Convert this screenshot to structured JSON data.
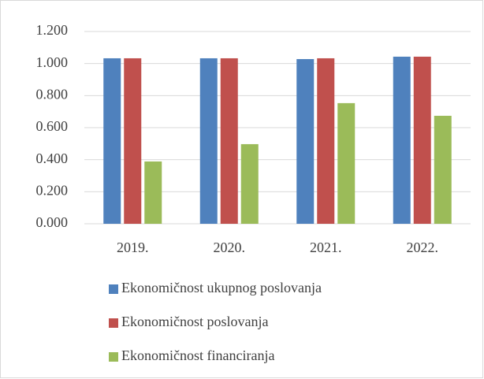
{
  "chart_data": {
    "type": "bar",
    "categories": [
      "2019.",
      "2020.",
      "2021.",
      "2022."
    ],
    "series": [
      {
        "name": "Ekonomičnost ukupnog poslovanja",
        "color": "#4f81bd",
        "values": [
          1.033,
          1.033,
          1.028,
          1.043
        ]
      },
      {
        "name": "Ekonomičnost poslovanja",
        "color": "#c0504d",
        "values": [
          1.033,
          1.033,
          1.033,
          1.043
        ]
      },
      {
        "name": "Ekonomičnost financiranja",
        "color": "#9bbb59",
        "values": [
          0.389,
          0.497,
          0.753,
          0.674
        ]
      }
    ],
    "ylim": [
      0,
      1.2
    ],
    "yticks": [
      {
        "value": 0,
        "label": "0.000"
      },
      {
        "value": 0.2,
        "label": "0.200"
      },
      {
        "value": 0.4,
        "label": "0.400"
      },
      {
        "value": 0.6,
        "label": "0.600"
      },
      {
        "value": 0.8,
        "label": "0.800"
      },
      {
        "value": 1,
        "label": "1.000"
      },
      {
        "value": 1.2,
        "label": "1.200"
      }
    ],
    "grid": true,
    "legend": "bottom"
  }
}
